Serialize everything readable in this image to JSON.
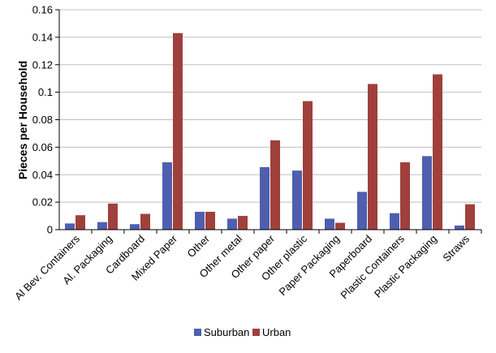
{
  "chart_data": {
    "type": "bar",
    "title": "",
    "xlabel": "",
    "ylabel": "Pieces per Household",
    "ylim": [
      0,
      0.16
    ],
    "yticks": [
      0,
      0.02,
      0.04,
      0.06,
      0.08,
      0.1,
      0.12,
      0.14,
      0.16
    ],
    "ytick_labels": [
      "0",
      "0.02",
      "0.04",
      "0.06",
      "0.08",
      "0.1",
      "0.12",
      "0.14",
      "0.16"
    ],
    "grid": true,
    "legend_position": "bottom",
    "categories": [
      "Al Bev. Containers",
      "Al. Packaging",
      "Cardboard",
      "Mixed Paper",
      "Other",
      "Other metal",
      "Other paper",
      "Other plastic",
      "Paper Packaging",
      "Paperboard",
      "Plastic Containers",
      "Plastic Packaging",
      "Straws"
    ],
    "series": [
      {
        "name": "Suburban",
        "color": "#4F5FAE",
        "values": [
          0.0045,
          0.0055,
          0.004,
          0.049,
          0.013,
          0.008,
          0.0455,
          0.043,
          0.008,
          0.0275,
          0.012,
          0.0535,
          0.003
        ]
      },
      {
        "name": "Urban",
        "color": "#A0403C",
        "values": [
          0.0105,
          0.019,
          0.0115,
          0.143,
          0.013,
          0.01,
          0.065,
          0.0935,
          0.005,
          0.106,
          0.049,
          0.113,
          0.0185
        ]
      }
    ]
  }
}
